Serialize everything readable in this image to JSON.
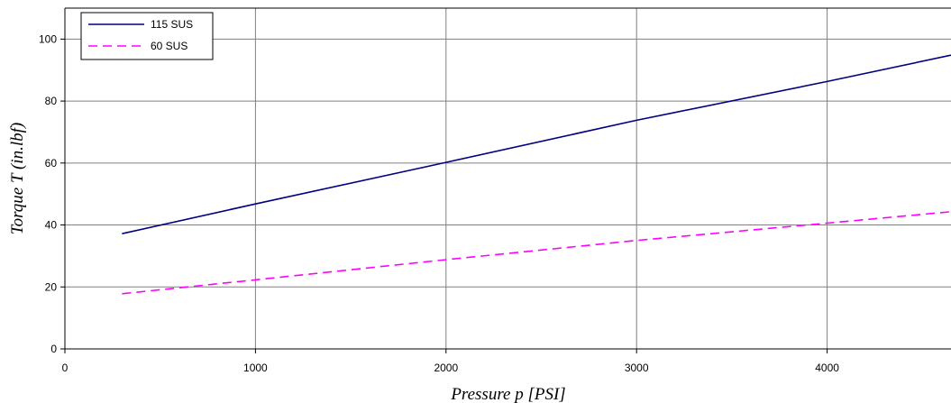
{
  "chart_data": {
    "type": "line",
    "title": "",
    "xlabel": "Pressure p [PSI]",
    "ylabel": "Torque T (in.lbf)",
    "xlim": [
      0,
      4650
    ],
    "ylim": [
      0,
      110
    ],
    "xticks": [
      0,
      1000,
      2000,
      3000,
      4000
    ],
    "yticks": [
      0,
      20,
      40,
      60,
      80,
      100
    ],
    "grid": true,
    "legend_position": "top-left",
    "series": [
      {
        "name": "115 SUS",
        "color": "#000080",
        "style": "solid",
        "x": [
          300,
          1000,
          2000,
          3000,
          4000,
          4650
        ],
        "y": [
          37.2,
          46.8,
          60.2,
          73.8,
          86.3,
          94.8
        ]
      },
      {
        "name": "60 SUS",
        "color": "#ff00ff",
        "style": "dashed",
        "x": [
          300,
          1000,
          2000,
          3000,
          4000,
          4650
        ],
        "y": [
          17.8,
          22.3,
          28.8,
          35.0,
          40.6,
          44.3
        ]
      }
    ]
  }
}
